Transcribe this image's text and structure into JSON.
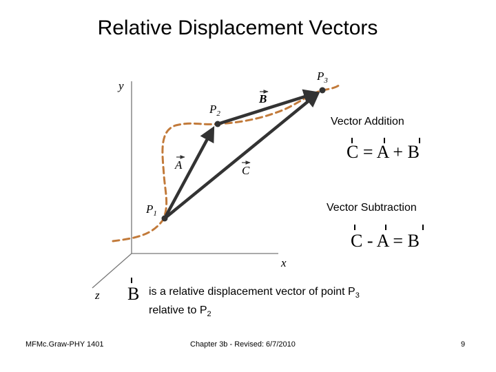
{
  "title": "Relative Displacement Vectors",
  "diagram": {
    "axis_labels": {
      "x": "x",
      "y": "y",
      "z": "z"
    },
    "points": {
      "p1": "P",
      "p1_sub": "1",
      "p2": "P",
      "p2_sub": "2",
      "p3": "P",
      "p3_sub": "3"
    },
    "vectors": {
      "a": "A",
      "b": "B",
      "c": "C"
    },
    "colors": {
      "path": "#c27a3a",
      "vector": "#333333",
      "axes": "#777777"
    }
  },
  "vector_addition": {
    "title": "Vector Addition",
    "equation": "C = A + B"
  },
  "vector_subtraction": {
    "title": "Vector Subtraction",
    "equation": "C - A =  B"
  },
  "description": {
    "symbol": "B",
    "line1": "is a relative displacement vector of point P",
    "line1_sub": "3",
    "line2": "relative to P",
    "line2_sub": "2"
  },
  "footer": {
    "left": "MFMc.Graw-PHY 1401",
    "middle": "Chapter 3b - Revised: 6/7/2010",
    "page": "9"
  }
}
